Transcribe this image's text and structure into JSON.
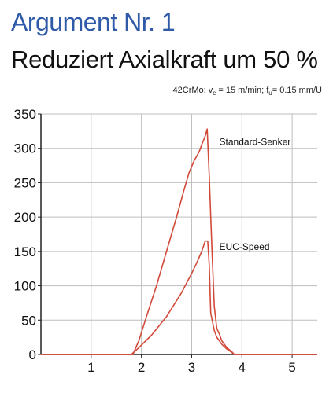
{
  "header": {
    "title": "Argument Nr. 1",
    "headline": "Reduziert Axialkraft um 50 %"
  },
  "condition": {
    "material": "42CrMo;",
    "vc_symbol": "v",
    "vc_sub": "c",
    "vc_value": "= 15 m/min;",
    "fu_symbol": "f",
    "fu_sub": "u",
    "fu_value": "= 0.15 mm/U"
  },
  "colors": {
    "title": "#2f5aa8",
    "curve": "#d24a3a",
    "grid": "#bdbdbd",
    "axis": "#222222"
  },
  "chart_data": {
    "type": "line",
    "xlim": [
      0,
      5.5
    ],
    "ylim": [
      0,
      350
    ],
    "xticks": [
      "1",
      "2",
      "3",
      "4",
      "5"
    ],
    "xtick_values": [
      1,
      2,
      3,
      4,
      5
    ],
    "yticks": [
      "0",
      "50",
      "100",
      "150",
      "200",
      "250",
      "300",
      "350"
    ],
    "ytick_values": [
      0,
      50,
      100,
      150,
      200,
      250,
      300,
      350
    ],
    "grid": true,
    "series": [
      {
        "name": "Standard-Senker",
        "x": [
          0,
          1.83,
          1.95,
          2.1,
          2.3,
          2.5,
          2.7,
          2.85,
          2.95,
          3.05,
          3.15,
          3.2,
          3.27,
          3.31,
          3.35,
          3.4,
          3.45,
          3.5,
          3.55,
          3.6,
          3.7,
          3.8,
          3.85,
          4.0,
          5.5
        ],
        "y": [
          0,
          0,
          20,
          55,
          100,
          150,
          200,
          240,
          265,
          282,
          295,
          305,
          318,
          328,
          260,
          160,
          70,
          38,
          30,
          20,
          10,
          4,
          0,
          0,
          0
        ]
      },
      {
        "name": "EUC-Speed",
        "x": [
          0,
          1.8,
          1.95,
          2.2,
          2.5,
          2.8,
          3.0,
          3.1,
          3.2,
          3.27,
          3.32,
          3.35,
          3.38,
          3.45,
          3.5,
          3.55,
          3.6,
          3.7,
          3.8,
          3.85,
          4.0,
          5.5
        ],
        "y": [
          0,
          0,
          10,
          28,
          55,
          90,
          118,
          133,
          150,
          165,
          165,
          130,
          60,
          35,
          25,
          20,
          15,
          8,
          3,
          0,
          0,
          0
        ]
      }
    ]
  }
}
